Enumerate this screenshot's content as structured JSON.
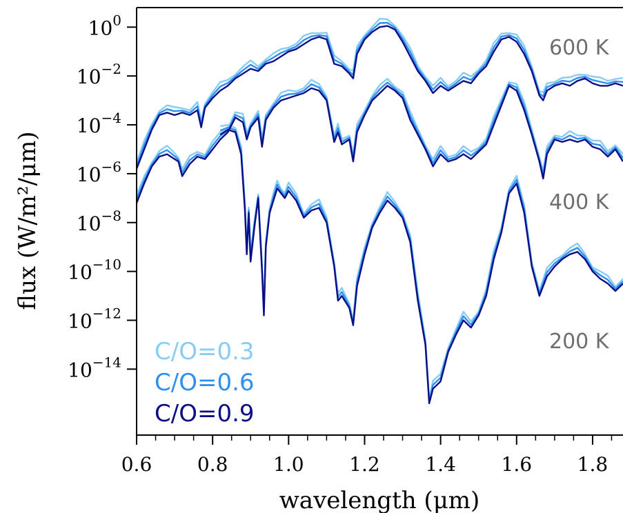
{
  "chart_data": {
    "type": "line",
    "title": "",
    "xlabel": "wavelength (μm)",
    "ylabel": "flux (W/m²/μm)",
    "xlim": [
      0.6,
      1.88
    ],
    "ylim_log10": [
      -16.7,
      0.8
    ],
    "yscale": "log",
    "grid": false,
    "legend_position": "bottom-left",
    "x_ticks": [
      0.6,
      0.8,
      1.0,
      1.2,
      1.4,
      1.6,
      1.8
    ],
    "x_tick_labels": [
      "0.6",
      "0.8",
      "1.0",
      "1.2",
      "1.4",
      "1.6",
      "1.8"
    ],
    "y_tick_exponents": [
      "0",
      "−2",
      "−4",
      "−6",
      "−8",
      "−10",
      "−12",
      "−14"
    ],
    "legend": [
      {
        "label": "C/O=0.3",
        "color": "#88ccf5"
      },
      {
        "label": "C/O=0.6",
        "color": "#2e8ff0"
      },
      {
        "label": "C/O=0.9",
        "color": "#0c0e85"
      }
    ],
    "temperature_labels": [
      "600 K",
      "400 K",
      "200 K"
    ],
    "series": [
      {
        "name": "600 K, C/O=0.9",
        "x": [
          0.6,
          0.62,
          0.64,
          0.66,
          0.68,
          0.7,
          0.72,
          0.74,
          0.76,
          0.77,
          0.78,
          0.8,
          0.82,
          0.84,
          0.86,
          0.88,
          0.9,
          0.92,
          0.94,
          0.96,
          0.98,
          1.0,
          1.02,
          1.04,
          1.06,
          1.08,
          1.1,
          1.12,
          1.14,
          1.16,
          1.17,
          1.18,
          1.2,
          1.22,
          1.24,
          1.26,
          1.28,
          1.3,
          1.32,
          1.34,
          1.36,
          1.38,
          1.4,
          1.42,
          1.44,
          1.46,
          1.48,
          1.5,
          1.52,
          1.54,
          1.56,
          1.58,
          1.6,
          1.62,
          1.64,
          1.66,
          1.67,
          1.68,
          1.7,
          1.72,
          1.74,
          1.76,
          1.78,
          1.8,
          1.82,
          1.84,
          1.86,
          1.88
        ],
        "y": [
          -5.8,
          -5.0,
          -4.2,
          -3.6,
          -3.5,
          -3.6,
          -3.5,
          -3.6,
          -3.4,
          -4.1,
          -3.3,
          -2.9,
          -2.6,
          -2.4,
          -2.1,
          -1.9,
          -1.7,
          -1.8,
          -1.5,
          -1.4,
          -1.2,
          -1.0,
          -0.9,
          -0.7,
          -0.5,
          -0.4,
          -0.5,
          -1.5,
          -1.6,
          -1.9,
          -2.1,
          -1.1,
          -0.5,
          -0.2,
          0.0,
          0.05,
          -0.1,
          -0.6,
          -1.2,
          -1.8,
          -2.2,
          -2.7,
          -2.4,
          -2.6,
          -2.4,
          -2.2,
          -2.3,
          -1.9,
          -1.6,
          -1.0,
          -0.5,
          -0.4,
          -0.6,
          -1.1,
          -1.8,
          -2.8,
          -3.0,
          -2.6,
          -2.4,
          -2.3,
          -2.4,
          -2.2,
          -2.1,
          -2.3,
          -2.4,
          -2.4,
          -2.3,
          -2.4
        ]
      },
      {
        "name": "400 K, C/O=0.9",
        "x": [
          0.6,
          0.62,
          0.64,
          0.66,
          0.68,
          0.7,
          0.71,
          0.72,
          0.74,
          0.76,
          0.78,
          0.8,
          0.82,
          0.84,
          0.86,
          0.88,
          0.89,
          0.9,
          0.92,
          0.93,
          0.94,
          0.96,
          0.98,
          1.0,
          1.02,
          1.04,
          1.06,
          1.08,
          1.1,
          1.12,
          1.13,
          1.14,
          1.16,
          1.17,
          1.18,
          1.2,
          1.22,
          1.24,
          1.26,
          1.28,
          1.3,
          1.32,
          1.34,
          1.36,
          1.38,
          1.4,
          1.42,
          1.44,
          1.46,
          1.48,
          1.5,
          1.52,
          1.54,
          1.56,
          1.58,
          1.6,
          1.62,
          1.64,
          1.66,
          1.67,
          1.68,
          1.7,
          1.72,
          1.74,
          1.76,
          1.78,
          1.8,
          1.82,
          1.84,
          1.86,
          1.88
        ],
        "y": [
          -7.2,
          -6.4,
          -5.7,
          -5.3,
          -5.2,
          -5.4,
          -5.5,
          -6.1,
          -5.6,
          -5.3,
          -5.4,
          -5.0,
          -4.6,
          -4.3,
          -3.7,
          -3.9,
          -4.6,
          -4.1,
          -3.7,
          -4.9,
          -3.8,
          -3.3,
          -3.0,
          -2.9,
          -2.8,
          -2.7,
          -2.5,
          -2.6,
          -3.0,
          -4.7,
          -4.3,
          -4.8,
          -4.6,
          -5.5,
          -4.3,
          -3.6,
          -3.0,
          -2.7,
          -2.4,
          -2.6,
          -2.9,
          -3.8,
          -4.4,
          -5.0,
          -5.7,
          -5.2,
          -5.5,
          -5.4,
          -5.2,
          -5.4,
          -5.1,
          -4.8,
          -4.0,
          -3.2,
          -2.4,
          -2.6,
          -3.4,
          -4.4,
          -5.5,
          -6.2,
          -5.2,
          -4.6,
          -4.7,
          -4.6,
          -4.7,
          -4.6,
          -4.9,
          -5.0,
          -5.3,
          -5.0,
          -5.5
        ]
      },
      {
        "name": "200 K, C/O=0.9",
        "x": [
          0.82,
          0.84,
          0.86,
          0.875,
          0.885,
          0.89,
          0.895,
          0.9,
          0.91,
          0.92,
          0.93,
          0.935,
          0.94,
          0.95,
          0.96,
          0.97,
          0.98,
          0.99,
          1.0,
          1.02,
          1.04,
          1.06,
          1.08,
          1.1,
          1.12,
          1.13,
          1.14,
          1.16,
          1.17,
          1.18,
          1.2,
          1.22,
          1.24,
          1.26,
          1.28,
          1.3,
          1.32,
          1.34,
          1.36,
          1.37,
          1.38,
          1.4,
          1.42,
          1.44,
          1.46,
          1.48,
          1.5,
          1.52,
          1.54,
          1.56,
          1.58,
          1.6,
          1.62,
          1.64,
          1.66,
          1.68,
          1.7,
          1.72,
          1.74,
          1.76,
          1.78,
          1.8,
          1.82,
          1.84,
          1.86,
          1.88
        ],
        "y": [
          -4.4,
          -4.2,
          -4.3,
          -5.2,
          -7.5,
          -9.3,
          -7.6,
          -9.6,
          -8.2,
          -7.0,
          -10.0,
          -11.8,
          -9.0,
          -7.6,
          -7.1,
          -6.6,
          -6.8,
          -7.0,
          -6.7,
          -7.1,
          -7.8,
          -7.5,
          -7.4,
          -8.0,
          -9.8,
          -11.2,
          -11.0,
          -11.5,
          -12.2,
          -10.6,
          -9.3,
          -8.2,
          -7.6,
          -7.1,
          -7.4,
          -7.8,
          -8.8,
          -11.2,
          -13.0,
          -15.4,
          -14.8,
          -14.5,
          -13.3,
          -12.6,
          -12.0,
          -12.3,
          -11.8,
          -11.0,
          -9.5,
          -8.4,
          -6.8,
          -6.4,
          -7.6,
          -9.8,
          -11.0,
          -10.2,
          -9.8,
          -9.5,
          -9.3,
          -9.2,
          -9.5,
          -10.0,
          -10.3,
          -10.5,
          -10.8,
          -10.5
        ]
      }
    ],
    "variant_offsets_log10": {
      "C/O=0.3": 0.25,
      "C/O=0.6": 0.12,
      "C/O=0.9": 0.0
    }
  }
}
